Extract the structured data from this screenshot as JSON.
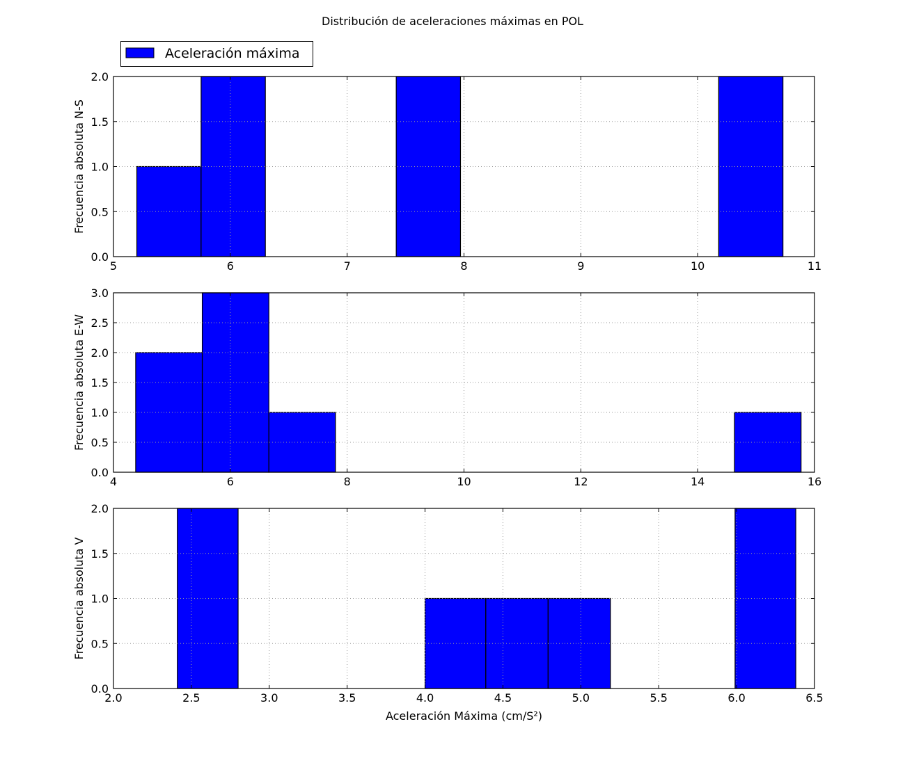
{
  "title": "Distribución de aceleraciones máximas en POL",
  "legend": {
    "label": "Aceleración máxima",
    "placement": "top-left",
    "color": "#0000ff"
  },
  "colors": {
    "bar_fill": "#0000ff",
    "bar_edge": "#000000",
    "grid": "#9a9a9a",
    "axes": "#000000"
  },
  "chart_data": [
    {
      "type": "bar",
      "panel": "N-S",
      "ylabel": "Frecuencia absoluta N-S",
      "xlabel": "",
      "xlim": [
        5,
        11
      ],
      "ylim": [
        0,
        2
      ],
      "grid": true,
      "xticks": [
        5,
        6,
        7,
        8,
        9,
        10,
        11
      ],
      "xtick_labels": [
        "5",
        "6",
        "7",
        "8",
        "9",
        "10",
        "11"
      ],
      "yticks": [
        0,
        0.5,
        1,
        1.5,
        2
      ],
      "ytick_labels": [
        "0.0",
        "0.5",
        "1.0",
        "1.5",
        "2.0"
      ],
      "bins": [
        {
          "x0": 5.2,
          "x1": 5.75,
          "value": 1
        },
        {
          "x0": 5.75,
          "x1": 6.3,
          "value": 2
        },
        {
          "x0": 7.42,
          "x1": 7.97,
          "value": 2
        },
        {
          "x0": 10.18,
          "x1": 10.73,
          "value": 2
        }
      ]
    },
    {
      "type": "bar",
      "panel": "E-W",
      "ylabel": "Frecuencia absoluta E-W",
      "xlabel": "",
      "xlim": [
        4,
        16
      ],
      "ylim": [
        0,
        3
      ],
      "grid": true,
      "xticks": [
        4,
        6,
        8,
        10,
        12,
        14,
        16
      ],
      "xtick_labels": [
        "4",
        "6",
        "8",
        "10",
        "12",
        "14",
        "16"
      ],
      "yticks": [
        0,
        0.5,
        1,
        1.5,
        2,
        2.5,
        3
      ],
      "ytick_labels": [
        "0.0",
        "0.5",
        "1.0",
        "1.5",
        "2.0",
        "2.5",
        "3.0"
      ],
      "bins": [
        {
          "x0": 4.38,
          "x1": 5.52,
          "value": 2
        },
        {
          "x0": 5.52,
          "x1": 6.66,
          "value": 3
        },
        {
          "x0": 6.66,
          "x1": 7.8,
          "value": 1
        },
        {
          "x0": 14.63,
          "x1": 15.77,
          "value": 1
        }
      ]
    },
    {
      "type": "bar",
      "panel": "V",
      "ylabel": "Frecuencia absoluta V",
      "xlabel": "Aceleración Máxima (cm/S²)",
      "xlim": [
        2.0,
        6.5
      ],
      "ylim": [
        0,
        2
      ],
      "grid": true,
      "xticks": [
        2.0,
        2.5,
        3.0,
        3.5,
        4.0,
        4.5,
        5.0,
        5.5,
        6.0,
        6.5
      ],
      "xtick_labels": [
        "2.0",
        "2.5",
        "3.0",
        "3.5",
        "4.0",
        "4.5",
        "5.0",
        "5.5",
        "6.0",
        "6.5"
      ],
      "yticks": [
        0,
        0.5,
        1,
        1.5,
        2
      ],
      "ytick_labels": [
        "0.0",
        "0.5",
        "1.0",
        "1.5",
        "2.0"
      ],
      "bins": [
        {
          "x0": 2.41,
          "x1": 2.8,
          "value": 2
        },
        {
          "x0": 4.0,
          "x1": 4.39,
          "value": 1
        },
        {
          "x0": 4.39,
          "x1": 4.79,
          "value": 1
        },
        {
          "x0": 4.79,
          "x1": 5.19,
          "value": 1
        },
        {
          "x0": 5.99,
          "x1": 6.38,
          "value": 2
        }
      ]
    }
  ]
}
